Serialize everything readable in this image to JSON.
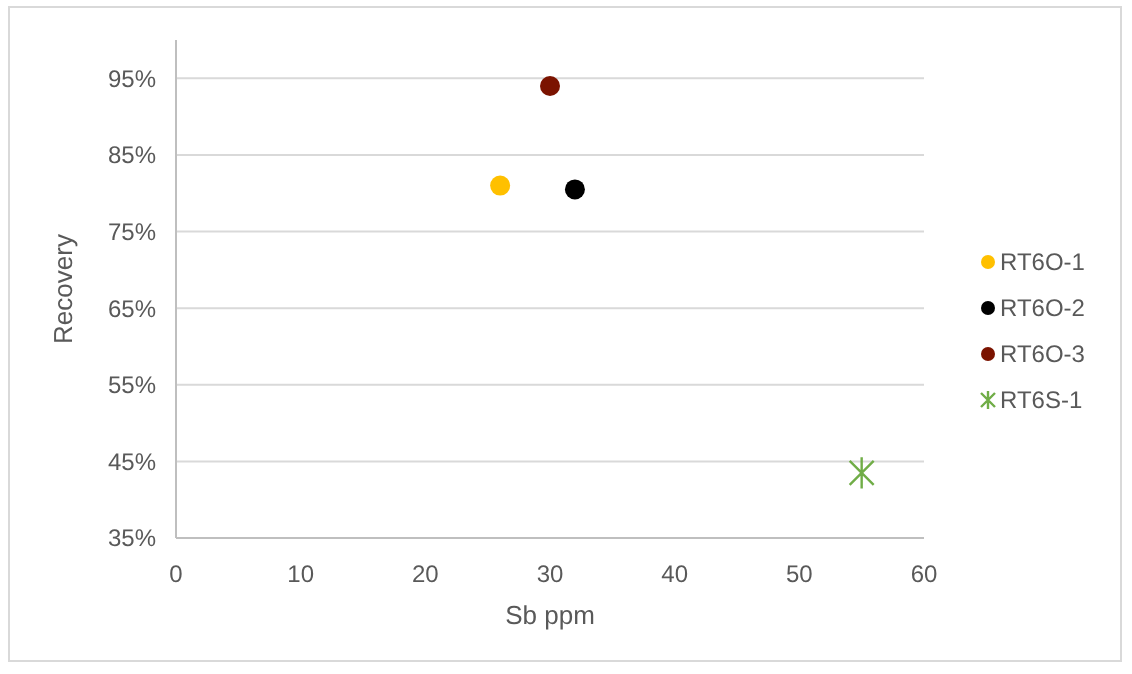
{
  "chart_data": {
    "type": "scatter",
    "xlabel": "Sb ppm",
    "ylabel": "Recovery",
    "xlim": [
      0,
      60
    ],
    "xticks": [
      0,
      10,
      20,
      30,
      40,
      50,
      60
    ],
    "ylim": [
      35,
      100
    ],
    "yticks": [
      {
        "value": 35,
        "label": "35%"
      },
      {
        "value": 45,
        "label": "45%"
      },
      {
        "value": 55,
        "label": "55%"
      },
      {
        "value": 65,
        "label": "65%"
      },
      {
        "value": 75,
        "label": "75%"
      },
      {
        "value": 85,
        "label": "85%"
      },
      {
        "value": 95,
        "label": "95%"
      }
    ],
    "grid": "y",
    "legend": "right",
    "series": [
      {
        "name": "RT6O-1",
        "color": "#ffc000",
        "marker": "circle",
        "x": [
          26
        ],
        "values": [
          81
        ]
      },
      {
        "name": "RT6O-2",
        "color": "#000000",
        "marker": "circle",
        "x": [
          32
        ],
        "values": [
          80.5
        ]
      },
      {
        "name": "RT6O-3",
        "color": "#7b1300",
        "marker": "circle",
        "x": [
          30
        ],
        "values": [
          94
        ]
      },
      {
        "name": "RT6S-1",
        "color": "#70ad47",
        "marker": "cross",
        "x": [
          55
        ],
        "values": [
          43.5
        ]
      }
    ]
  }
}
